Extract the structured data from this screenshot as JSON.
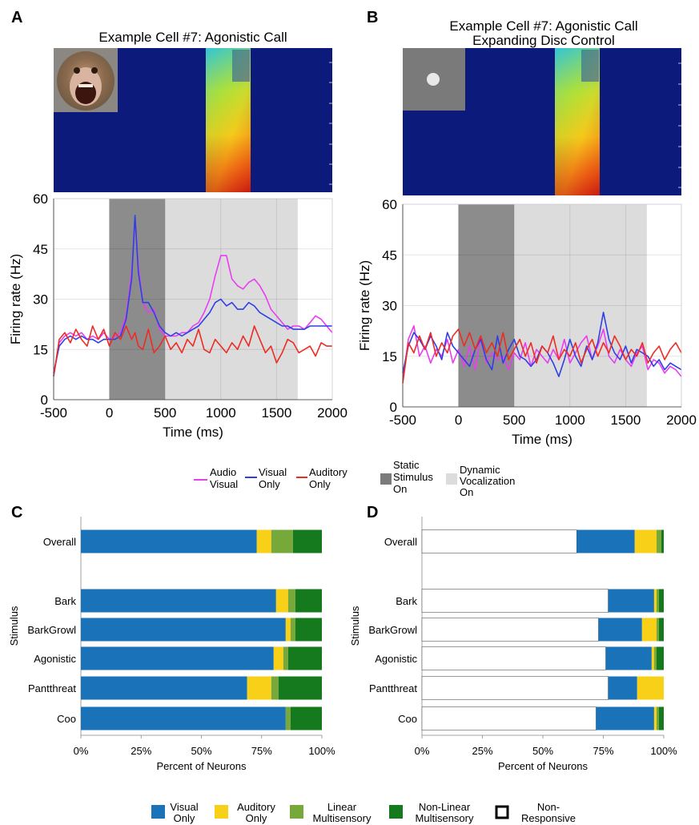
{
  "panel_letters": [
    "A",
    "B",
    "C",
    "D"
  ],
  "colors": {
    "audio_visual": "#e83ef0",
    "visual_only": "#2f3fe6",
    "auditory_only": "#ee2b24",
    "static_shade": "#8c8c8c",
    "dynamic_shade": "#dcdcdc",
    "spectrogram_bg": "#0a1a7a",
    "bar_visual": "#1a72b8",
    "bar_auditory": "#f7d017",
    "bar_linear": "#77a83a",
    "bar_nonlinear": "#157a1d",
    "bar_nonresponsive": "#ffffff"
  },
  "icons": {
    "A": "monkey-face-photo",
    "B": "expanding-disc-icon"
  },
  "legend_top": {
    "audio_visual": [
      "Audio",
      "Visual"
    ],
    "visual_only": [
      "Visual",
      "Only"
    ],
    "auditory_only": [
      "Auditory",
      "Only"
    ],
    "static": [
      "Static",
      "Stimulus",
      "On"
    ],
    "dynamic": [
      "Dynamic",
      "Vocalization",
      "On"
    ]
  },
  "legend_bottom": {
    "visual_only": [
      "Visual",
      "Only"
    ],
    "auditory_only": [
      "Auditory",
      "Only"
    ],
    "linear": [
      "Linear",
      "Multisensory"
    ],
    "nonlinear": [
      "Non-Linear",
      "Multisensory"
    ],
    "nonresponsive": [
      "Non-",
      "Responsive"
    ]
  },
  "chart_data": [
    {
      "panel": "A",
      "type": "line",
      "title": "Example Cell #7: Agonistic Call",
      "xlabel": "Time (ms)",
      "ylabel": "Firing rate (Hz)",
      "xlim": [
        -500,
        2000
      ],
      "ylim": [
        0,
        60
      ],
      "xticks": [
        -500,
        0,
        500,
        1000,
        1500,
        2000
      ],
      "yticks": [
        0,
        15,
        30,
        45,
        60
      ],
      "grid": true,
      "shaded_regions": [
        {
          "kind": "static",
          "x0": 0,
          "x1": 500
        },
        {
          "kind": "dynamic",
          "x0": 500,
          "x1": 1690
        }
      ],
      "x": [
        -500,
        -450,
        -400,
        -350,
        -300,
        -250,
        -200,
        -150,
        -100,
        -50,
        0,
        50,
        100,
        150,
        200,
        230,
        260,
        300,
        350,
        400,
        450,
        500,
        550,
        600,
        650,
        700,
        750,
        800,
        850,
        900,
        950,
        1000,
        1050,
        1100,
        1150,
        1200,
        1250,
        1300,
        1350,
        1400,
        1450,
        1500,
        1550,
        1600,
        1650,
        1700,
        1750,
        1800,
        1850,
        1900,
        1950,
        2000
      ],
      "series": [
        {
          "key": "audio_visual",
          "values": [
            7,
            17,
            19,
            20,
            19,
            20,
            18,
            19,
            18,
            20,
            18,
            19,
            20,
            25,
            38,
            54,
            40,
            29,
            26,
            27,
            21,
            19,
            19,
            19,
            20,
            20,
            22,
            23,
            26,
            30,
            37,
            43,
            43,
            36,
            34,
            33,
            35,
            36,
            34,
            31,
            27,
            25,
            23,
            21,
            22,
            22,
            21,
            23,
            25,
            24,
            22,
            20
          ]
        },
        {
          "key": "visual_only",
          "values": [
            8,
            16,
            18,
            19,
            18,
            19,
            18,
            18,
            17,
            18,
            18,
            18,
            19,
            24,
            36,
            55,
            38,
            29,
            29,
            26,
            22,
            20,
            19,
            20,
            19,
            20,
            21,
            22,
            24,
            26,
            29,
            30,
            28,
            29,
            27,
            27,
            29,
            28,
            26,
            25,
            24,
            23,
            22,
            22,
            21,
            21,
            21,
            22,
            22,
            22,
            22,
            22
          ]
        },
        {
          "key": "auditory_only",
          "values": [
            7,
            18,
            20,
            17,
            21,
            18,
            16,
            22,
            18,
            21,
            16,
            20,
            18,
            22,
            18,
            20,
            16,
            15,
            21,
            14,
            16,
            19,
            15,
            17,
            14,
            18,
            16,
            21,
            15,
            14,
            18,
            16,
            14,
            17,
            15,
            19,
            16,
            22,
            18,
            14,
            16,
            11,
            14,
            18,
            17,
            14,
            15,
            16,
            13,
            17,
            16,
            16
          ]
        }
      ]
    },
    {
      "panel": "B",
      "type": "line",
      "title": "Example Cell #7: Agonistic Call\nExpanding Disc Control",
      "xlabel": "Time (ms)",
      "ylabel": "Firing rate (Hz)",
      "xlim": [
        -500,
        2000
      ],
      "ylim": [
        0,
        60
      ],
      "xticks": [
        -500,
        0,
        500,
        1000,
        1500,
        2000
      ],
      "yticks": [
        0,
        15,
        30,
        45,
        60
      ],
      "grid": true,
      "shaded_regions": [
        {
          "kind": "static",
          "x0": 0,
          "x1": 500
        },
        {
          "kind": "dynamic",
          "x0": 500,
          "x1": 1690
        }
      ],
      "x": [
        -500,
        -450,
        -400,
        -350,
        -300,
        -250,
        -200,
        -150,
        -100,
        -50,
        0,
        50,
        100,
        150,
        200,
        250,
        300,
        350,
        400,
        450,
        500,
        550,
        600,
        650,
        700,
        750,
        800,
        850,
        900,
        950,
        1000,
        1050,
        1100,
        1150,
        1200,
        1250,
        1300,
        1350,
        1400,
        1450,
        1500,
        1550,
        1600,
        1650,
        1700,
        1750,
        1800,
        1850,
        1900,
        1950,
        2000
      ],
      "series": [
        {
          "key": "audio_visual",
          "values": [
            8,
            20,
            24,
            15,
            18,
            13,
            17,
            15,
            20,
            13,
            17,
            12,
            18,
            11,
            21,
            13,
            16,
            14,
            15,
            11,
            16,
            14,
            19,
            12,
            17,
            15,
            13,
            17,
            14,
            20,
            13,
            16,
            19,
            21,
            14,
            18,
            23,
            15,
            13,
            17,
            14,
            12,
            16,
            18,
            11,
            14,
            13,
            10,
            12,
            11,
            9
          ]
        },
        {
          "key": "visual_only",
          "values": [
            10,
            18,
            22,
            20,
            17,
            21,
            18,
            14,
            22,
            18,
            16,
            14,
            12,
            17,
            20,
            14,
            11,
            21,
            13,
            17,
            20,
            15,
            14,
            12,
            14,
            18,
            16,
            13,
            9,
            14,
            20,
            15,
            12,
            18,
            14,
            19,
            28,
            20,
            16,
            14,
            18,
            13,
            17,
            16,
            15,
            12,
            14,
            11,
            13,
            12,
            11
          ]
        },
        {
          "key": "auditory_only",
          "values": [
            7,
            19,
            16,
            21,
            17,
            22,
            15,
            19,
            16,
            21,
            23,
            18,
            22,
            17,
            21,
            16,
            19,
            15,
            22,
            14,
            17,
            20,
            15,
            19,
            13,
            18,
            16,
            21,
            14,
            17,
            15,
            19,
            13,
            17,
            20,
            15,
            19,
            16,
            21,
            18,
            14,
            17,
            15,
            19,
            13,
            16,
            18,
            14,
            17,
            19,
            16
          ]
        }
      ]
    },
    {
      "panel": "C",
      "type": "bar",
      "orientation": "horizontal",
      "stacked": true,
      "xlabel": "Percent of Neurons",
      "ylabel": "Stimulus",
      "xlim": [
        0,
        100
      ],
      "xticks": [
        "0%",
        "25%",
        "50%",
        "75%",
        "100%"
      ],
      "categories": [
        "Overall",
        "Bark",
        "BarkGrowl",
        "Agonistic",
        "Pantthreat",
        "Coo"
      ],
      "series": [
        {
          "name": "Visual Only",
          "key": "bar_visual",
          "values": [
            73,
            81,
            85,
            80,
            69,
            85
          ]
        },
        {
          "name": "Auditory Only",
          "key": "bar_auditory",
          "values": [
            6,
            5,
            2,
            4,
            10,
            0
          ]
        },
        {
          "name": "Linear Multisensory",
          "key": "bar_linear",
          "values": [
            9,
            3,
            2,
            2,
            3,
            2
          ]
        },
        {
          "name": "Non-Linear Multisensory",
          "key": "bar_nonlinear",
          "values": [
            12,
            11,
            11,
            14,
            18,
            13
          ]
        }
      ]
    },
    {
      "panel": "D",
      "type": "bar",
      "orientation": "horizontal",
      "stacked": true,
      "xlabel": "Percent of Neurons",
      "ylabel": "Stimulus",
      "xlim": [
        0,
        100
      ],
      "xticks": [
        "0%",
        "25%",
        "50%",
        "75%",
        "100%"
      ],
      "categories": [
        "Overall",
        "Bark",
        "BarkGrowl",
        "Agonistic",
        "Pantthreat",
        "Coo"
      ],
      "series": [
        {
          "name": "Non-Responsive",
          "key": "bar_nonresponsive",
          "values": [
            64,
            77,
            73,
            76,
            77,
            72
          ]
        },
        {
          "name": "Visual Only",
          "key": "bar_visual",
          "values": [
            24,
            19,
            18,
            19,
            12,
            24
          ]
        },
        {
          "name": "Auditory Only",
          "key": "bar_auditory",
          "values": [
            9,
            1,
            6,
            1,
            11,
            1
          ]
        },
        {
          "name": "Linear Multisensory",
          "key": "bar_linear",
          "values": [
            2,
            1,
            1,
            1,
            0,
            1
          ]
        },
        {
          "name": "Non-Linear Multisensory",
          "key": "bar_nonlinear",
          "values": [
            1,
            2,
            2,
            3,
            0,
            2
          ]
        }
      ]
    }
  ]
}
